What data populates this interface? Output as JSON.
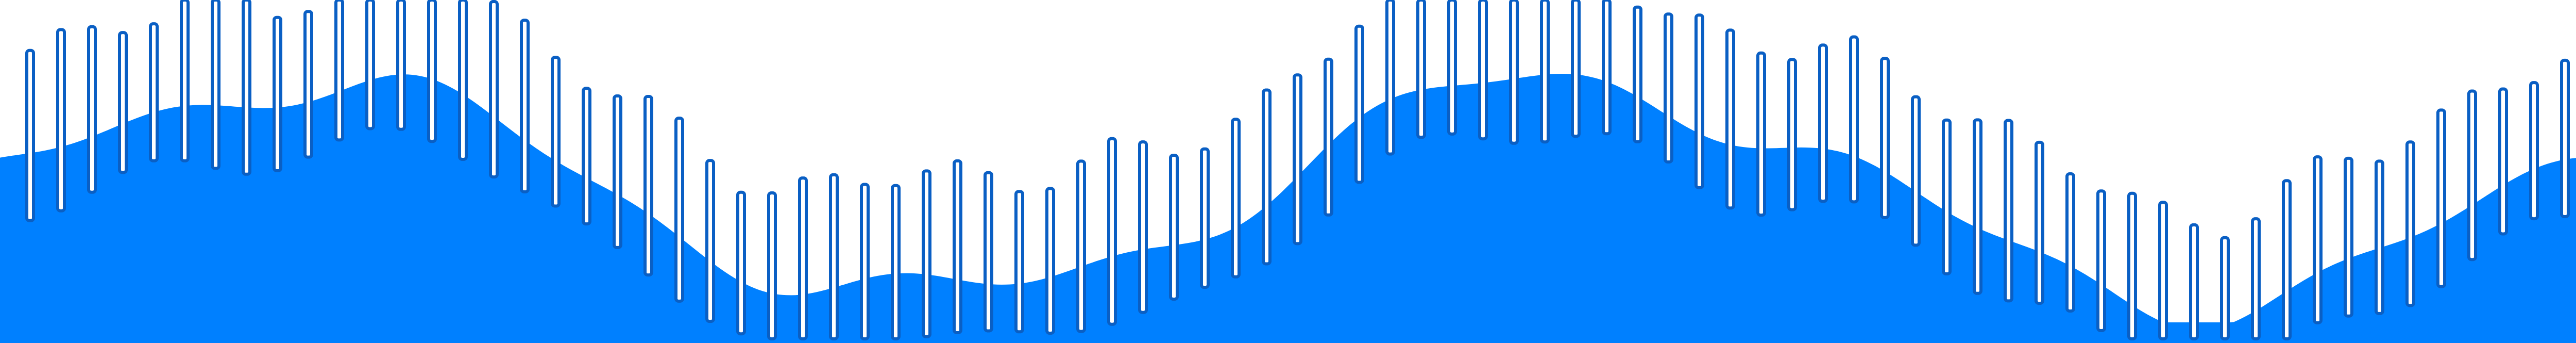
{
  "colors": {
    "background": "#ffffff",
    "fill": "#0080ff",
    "bar_stroke": "#0a5fc4",
    "bar_fill": "#ffffff"
  }
}
